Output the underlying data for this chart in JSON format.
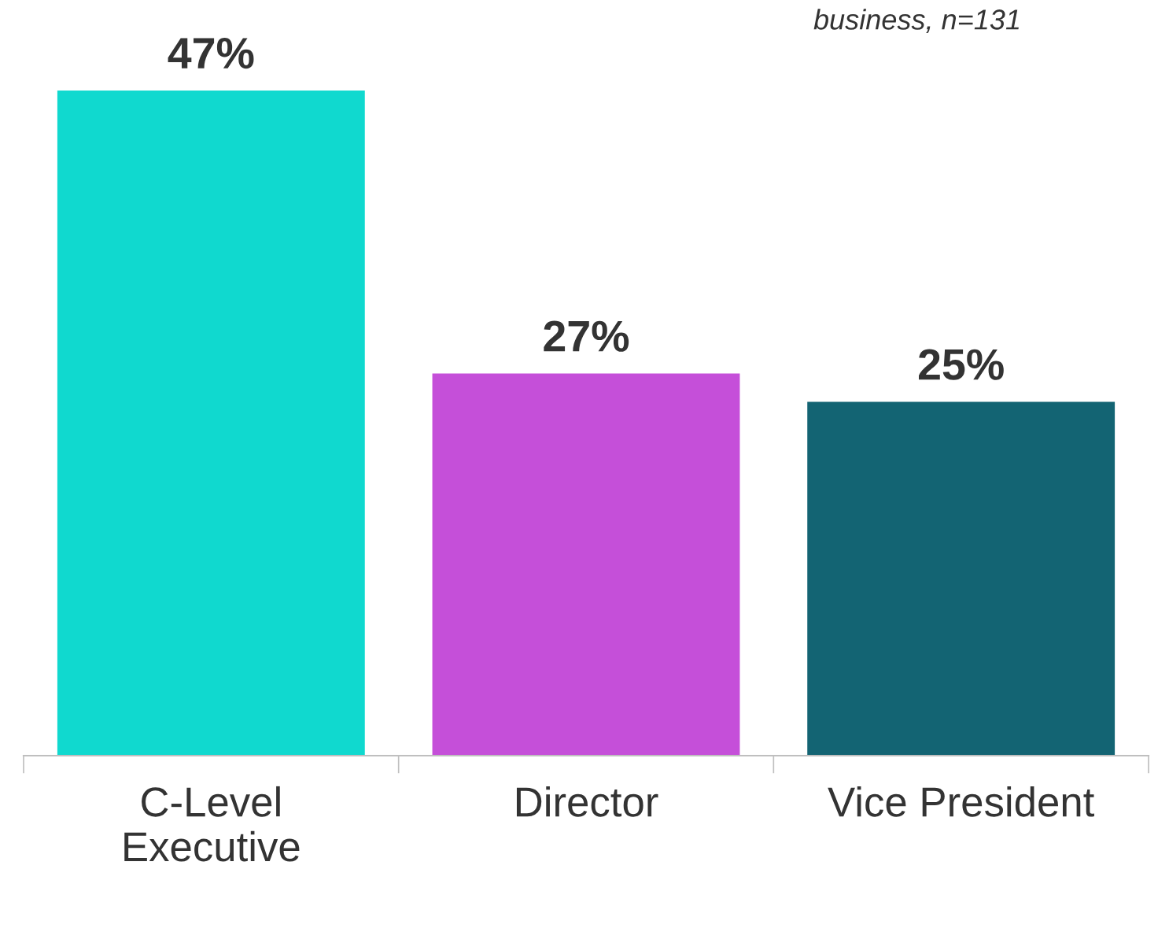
{
  "chart_data": {
    "type": "bar",
    "categories": [
      "C-Level\nExecutive",
      "Director",
      "Vice President"
    ],
    "values": [
      47,
      27,
      25
    ],
    "colors": [
      "#10d9cf",
      "#c54fd9",
      "#136473"
    ],
    "value_labels": [
      "47%",
      "27%",
      "25%"
    ],
    "tick_labels": "x",
    "grid": false,
    "legend": false,
    "annotations": [
      "business, n=131"
    ]
  }
}
